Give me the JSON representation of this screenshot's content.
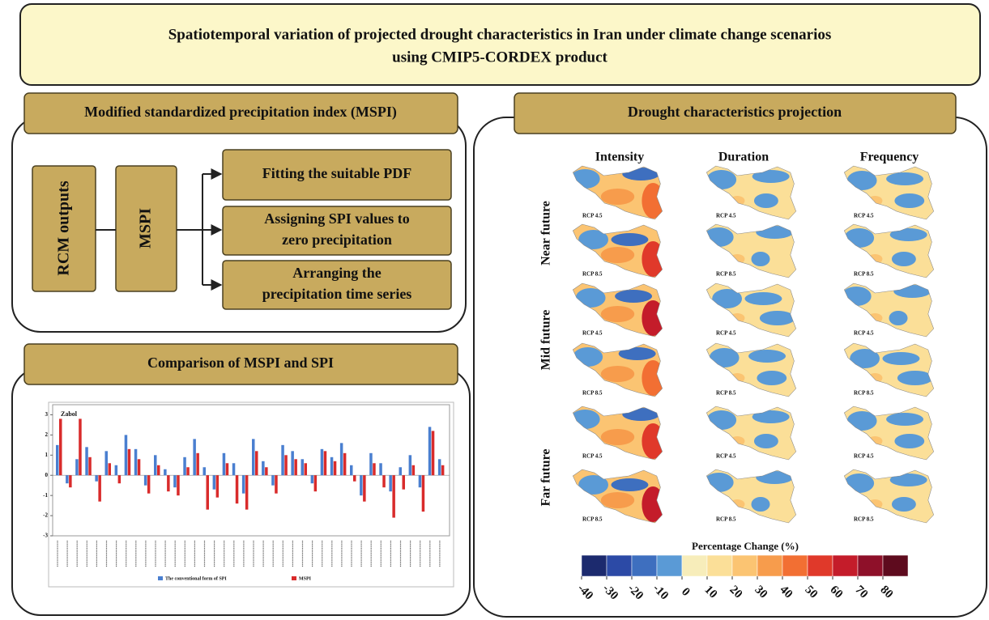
{
  "header": {
    "title": [
      "Spatiotemporal variation of projected drought characteristics in Iran under climate change scenarios",
      "using CMIP5-CORDEX product"
    ]
  },
  "mspi_panel": {
    "heading": "Modified standardized precipitation index (MSPI)",
    "input": "RCM outputs",
    "index": "MSPI",
    "steps": [
      [
        "Fitting the suitable PDF"
      ],
      [
        "Assigning  SPI values to",
        "zero precipitation"
      ],
      [
        "Arranging  the",
        "precipitation time series"
      ]
    ]
  },
  "comparison_panel": {
    "heading": "Comparison of MSPI and SPI",
    "chart": {
      "type": "bar",
      "title": "Zabol",
      "ylim": [
        -3,
        3.5
      ],
      "yticks": [
        3,
        2,
        1,
        0,
        -1,
        -2,
        -3
      ],
      "series": [
        {
          "name": "The conventional form of SPI",
          "color": "#4a7fd0",
          "values": [
            1.5,
            -0.4,
            0.8,
            1.4,
            -0.3,
            1.2,
            0.5,
            2.0,
            1.3,
            -0.5,
            1.0,
            0.3,
            -0.6,
            0.9,
            1.8,
            0.4,
            -0.7,
            1.1,
            0.6,
            -0.9,
            1.8,
            0.7,
            -0.5,
            1.5,
            1.2,
            0.8,
            -0.4,
            1.3,
            0.9,
            1.6,
            0.5,
            -1.0,
            1.1,
            0.6,
            -0.8,
            0.4,
            1.0,
            -0.6,
            2.4,
            0.8
          ]
        },
        {
          "name": "MSPI",
          "color": "#d92b2b",
          "values": [
            2.8,
            -0.6,
            2.8,
            0.9,
            -1.3,
            0.6,
            -0.4,
            1.3,
            0.8,
            -0.9,
            0.5,
            -0.8,
            -1.0,
            0.4,
            1.1,
            -1.7,
            -1.1,
            0.6,
            -1.4,
            -1.7,
            1.2,
            0.4,
            -0.9,
            1.0,
            0.8,
            0.6,
            -0.8,
            1.2,
            0.7,
            1.1,
            -0.3,
            -1.3,
            0.6,
            -0.6,
            -2.1,
            -0.7,
            0.5,
            -1.8,
            2.2,
            0.5
          ]
        }
      ]
    }
  },
  "projection_panel": {
    "heading": "Drought characteristics projection",
    "columns": [
      "Intensity",
      "Duration",
      "Frequency"
    ],
    "periods": [
      "Near future",
      "Mid future",
      "Far future"
    ],
    "maps": [
      [
        "RCP 4.5",
        "RCP 4.5",
        "RCP 4.5"
      ],
      [
        "RCP 8.5",
        "RCP 8.5",
        "RCP 8.5"
      ],
      [
        "RCP 4.5",
        "RCP 4.5",
        "RCP 4.5"
      ],
      [
        "RCP 8.5",
        "RCP 8.5",
        "RCP 8.5"
      ],
      [
        "RCP 4.5",
        "RCP 4.5",
        "RCP 4.5"
      ],
      [
        "RCP 8.5",
        "RCP 8.5",
        "RCP 8.5"
      ]
    ],
    "colorbar": {
      "title": "Percentage Change (%)",
      "colors": [
        "#1c2a6e",
        "#2c4aa6",
        "#3e6fbf",
        "#5a9ad6",
        "#f7edba",
        "#fbdf98",
        "#fbc472",
        "#f79c4c",
        "#f26f33",
        "#e0392a",
        "#c41c2a",
        "#8e1029",
        "#5e0b1e"
      ],
      "ticks": [
        -40,
        -30,
        -20,
        -10,
        0,
        10,
        20,
        30,
        40,
        50,
        60,
        70,
        80
      ]
    }
  }
}
